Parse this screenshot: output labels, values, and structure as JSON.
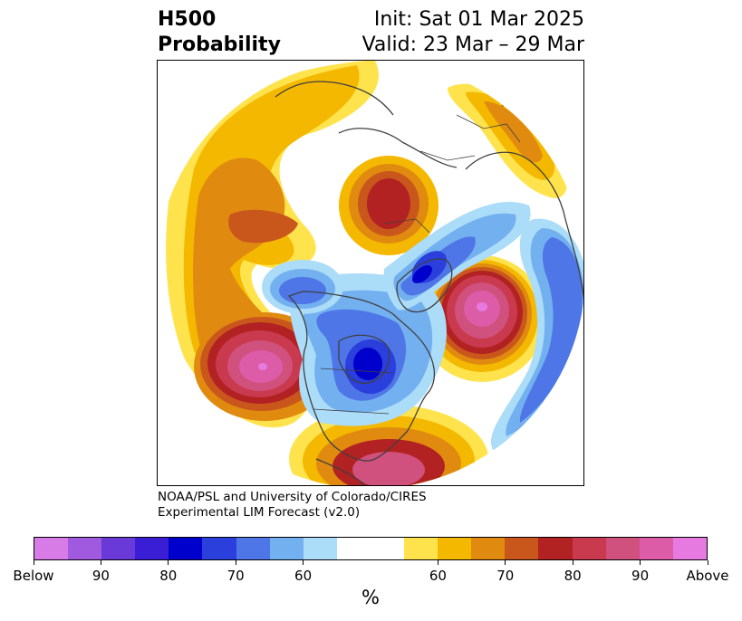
{
  "header": {
    "title_line1": "H500",
    "title_line2": "Probability",
    "init_text": "Init: Sat 01 Mar 2025",
    "valid_text": "Valid: 23 Mar – 29 Mar"
  },
  "credit": {
    "line1": "NOAA/PSL and University of Colorado/CIRES",
    "line2": "Experimental LIM Forecast (v2.0)"
  },
  "colorbar": {
    "colors": [
      "#d77be6",
      "#a05ae0",
      "#6a3ad9",
      "#3a1ed6",
      "#0000cd",
      "#2a3fdc",
      "#4e76e6",
      "#73b0f0",
      "#abdcf8",
      "#ffffff",
      "#ffffff",
      "#ffe34d",
      "#f4b800",
      "#e08a10",
      "#c9571c",
      "#b22222",
      "#c93a4e",
      "#d0507e",
      "#dc5ca8",
      "#e67ae0"
    ],
    "tick_labels": [
      "Below",
      "90",
      "80",
      "70",
      "60",
      "60",
      "70",
      "80",
      "90",
      "Above"
    ],
    "unit_label": "%"
  },
  "map": {
    "projection": "north-polar-stereographic",
    "anomalies": [
      {
        "region": "northeast-pacific",
        "sign": "above",
        "peak_percent": 95
      },
      {
        "region": "north-atlantic",
        "sign": "above",
        "peak_percent": 95
      },
      {
        "region": "siberia",
        "sign": "above",
        "peak_percent": 80
      },
      {
        "region": "northwest-pacific",
        "sign": "above",
        "peak_percent": 70
      },
      {
        "region": "hudson-bay-canada",
        "sign": "below",
        "peak_percent": 80
      },
      {
        "region": "greenland-arctic",
        "sign": "below",
        "peak_percent": 80
      },
      {
        "region": "europe-north-africa",
        "sign": "below",
        "peak_percent": 70
      },
      {
        "region": "alaska-arctic",
        "sign": "below",
        "peak_percent": 70
      }
    ]
  }
}
